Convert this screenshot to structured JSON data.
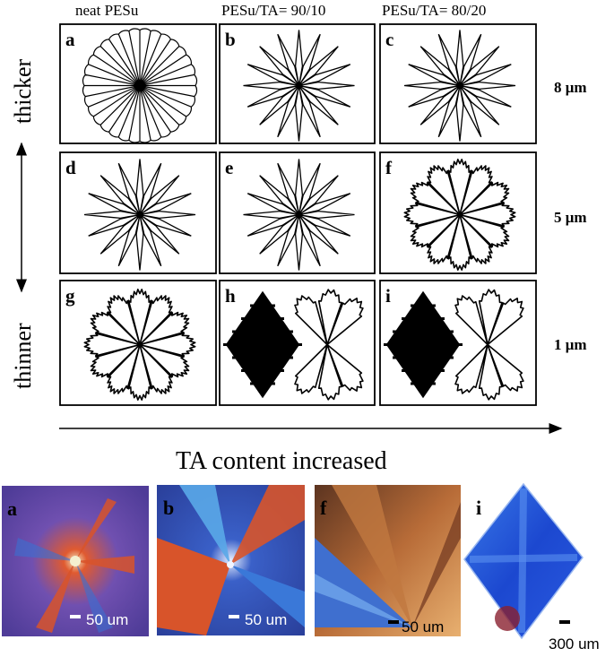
{
  "columns": [
    "neat PESu",
    "PESu/TA= 90/10",
    "PESu/TA= 80/20"
  ],
  "rows": [
    "8 μm",
    "5 μm",
    "1 μm"
  ],
  "left_axis": {
    "top_label": "thicker",
    "bottom_label": "thinner"
  },
  "bottom_axis": {
    "label": "TA content increased"
  },
  "schematic_panels": [
    {
      "id": "a",
      "label": "a",
      "morphology": "ring-banded-fine"
    },
    {
      "id": "b",
      "label": "b",
      "morphology": "star-petals"
    },
    {
      "id": "c",
      "label": "c",
      "morphology": "star-petals"
    },
    {
      "id": "d",
      "label": "d",
      "morphology": "star-petals"
    },
    {
      "id": "e",
      "label": "e",
      "morphology": "star-petals"
    },
    {
      "id": "f",
      "label": "f",
      "morphology": "dendritic-petals"
    },
    {
      "id": "g",
      "label": "g",
      "morphology": "dendritic-petals"
    },
    {
      "id": "h",
      "label": "h",
      "morphology": "rhombus-plus-bowtie"
    },
    {
      "id": "i",
      "label": "i",
      "morphology": "rhombus-plus-bowtie"
    }
  ],
  "micrographs": [
    {
      "id": "a",
      "label": "a",
      "scale": "50 um",
      "colors": [
        "#5a3fa0",
        "#d64a28",
        "#3a6fd0"
      ]
    },
    {
      "id": "b",
      "label": "b",
      "scale": "50 um",
      "colors": [
        "#2f4fc0",
        "#d8542a",
        "#5aa8e8"
      ]
    },
    {
      "id": "f",
      "label": "f",
      "scale": "50 um",
      "colors": [
        "#b87438",
        "#3f6fcf",
        "#e0a060"
      ]
    },
    {
      "id": "i",
      "label": "i",
      "scale": "300 um",
      "colors": [
        "#1f4fd8",
        "#4a8ae8",
        "#8a2030"
      ]
    }
  ]
}
